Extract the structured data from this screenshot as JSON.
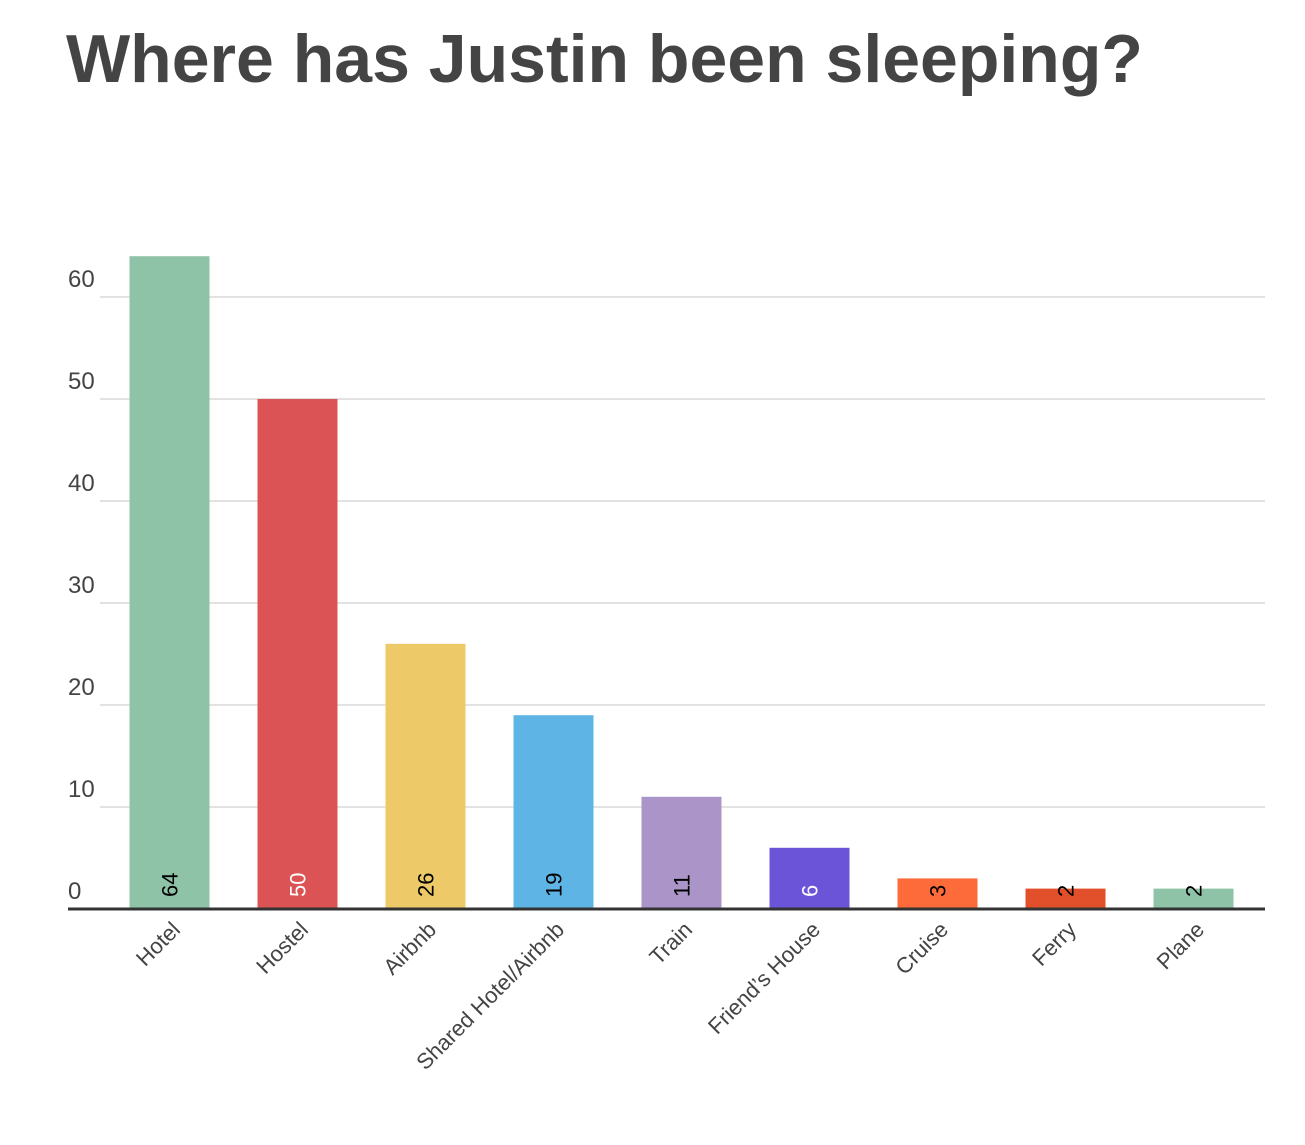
{
  "chart_data": {
    "type": "bar",
    "title": "Where has Justin been sleeping?",
    "categories": [
      "Hotel",
      "Hostel",
      "Airbnb",
      "Shared Hotel/Airbnb",
      "Train",
      "Friend’s House",
      "Cruise",
      "Ferry",
      "Plane"
    ],
    "values": [
      64,
      50,
      26,
      19,
      11,
      6,
      3,
      2,
      2
    ],
    "colors": [
      "#8fc3a8",
      "#dc5356",
      "#edc967",
      "#5eb5e5",
      "#ab94c8",
      "#6c54d9",
      "#fe6b3a",
      "#e1502b",
      "#8fc3a8"
    ],
    "label_colors": [
      "#000000",
      "#ffffff",
      "#000000",
      "#000000",
      "#000000",
      "#ffffff",
      "#000000",
      "#000000",
      "#000000"
    ],
    "ylim": [
      0,
      65
    ],
    "yticks": [
      0,
      10,
      20,
      30,
      40,
      50,
      60
    ],
    "grid": true
  }
}
